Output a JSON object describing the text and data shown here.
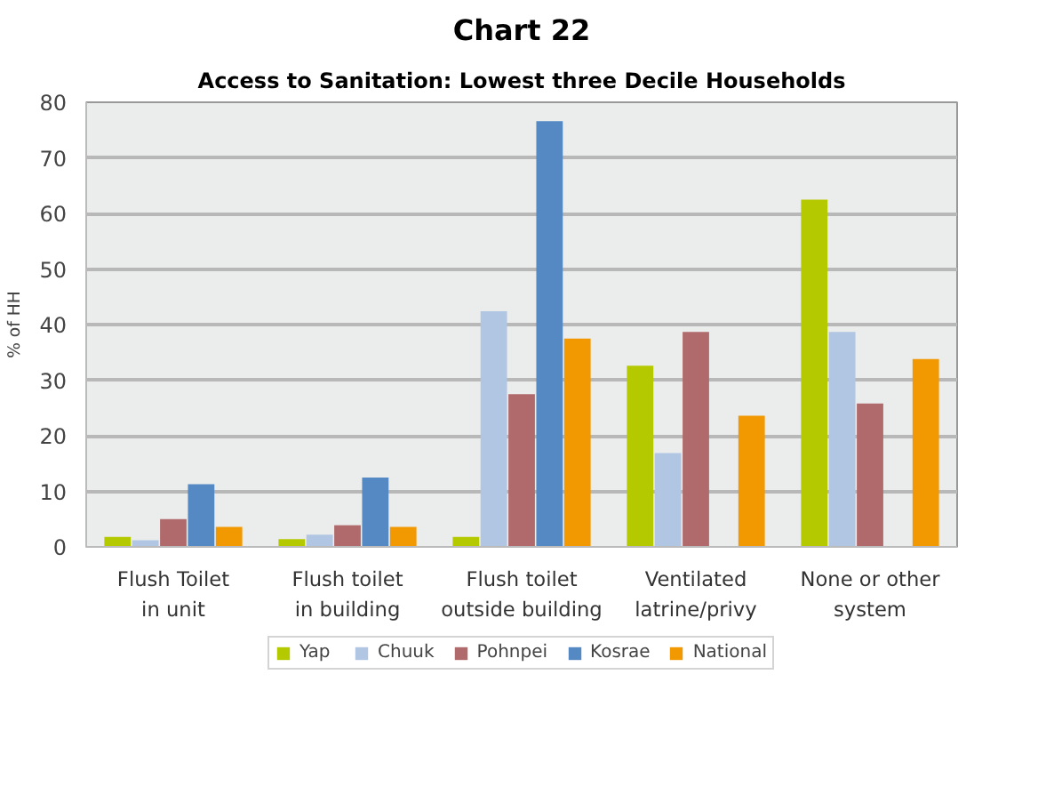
{
  "chart_data": {
    "type": "bar",
    "title": "Chart 22",
    "subtitle": "Access to Sanitation: Lowest three Decile Households",
    "ylabel": "% of HH",
    "categories": [
      "Flush Toilet\nin unit",
      "Flush toilet\nin building",
      "Flush toilet\noutside building",
      "Ventilated\nlatrine/privy",
      "None or other\nsystem"
    ],
    "series": [
      {
        "name": "Yap",
        "color": "#b5c900",
        "values": [
          1.8,
          1.4,
          1.8,
          32.6,
          62.5
        ]
      },
      {
        "name": "Chuuk",
        "color": "#b0c6e3",
        "values": [
          1.2,
          2.2,
          42.4,
          16.9,
          38.7
        ]
      },
      {
        "name": "Pohnpei",
        "color": "#b06a6c",
        "values": [
          5.0,
          3.9,
          27.5,
          38.7,
          25.8
        ]
      },
      {
        "name": "Kosrae",
        "color": "#5489c4",
        "values": [
          11.3,
          12.5,
          76.6,
          null,
          null
        ]
      },
      {
        "name": "National",
        "color": "#f29800",
        "values": [
          3.6,
          3.6,
          37.5,
          23.6,
          33.8
        ]
      }
    ],
    "ylim": [
      0,
      80
    ],
    "yticks": [
      0,
      10,
      20,
      30,
      40,
      50,
      60,
      70,
      80
    ],
    "grid": "y",
    "legend": "bottom"
  }
}
